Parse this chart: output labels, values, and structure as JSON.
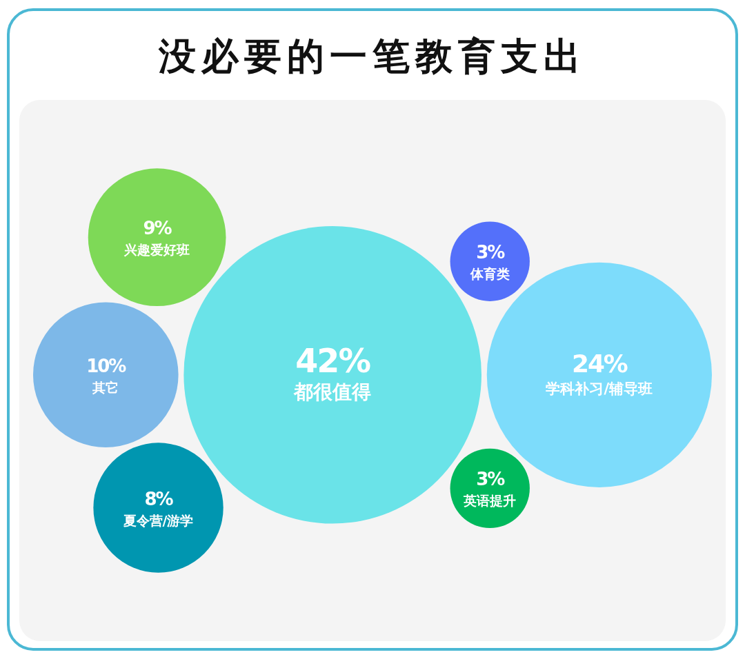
{
  "chart_data": {
    "type": "other",
    "title": "没必要的一笔教育支出",
    "categories": [
      "都很值得",
      "学科补习/辅导班",
      "其它",
      "兴趣爱好班",
      "夏令营/游学",
      "体育类",
      "英语提升"
    ],
    "values": [
      42,
      24,
      10,
      9,
      8,
      3,
      3
    ],
    "value_labels": [
      "42%",
      "24%",
      "10%",
      "9%",
      "8%",
      "3%",
      "3%"
    ],
    "colors": [
      "#6ae3e8",
      "#7ddcfb",
      "#7db8e8",
      "#7ed957",
      "#0096b0",
      "#5470fa",
      "#00b85c"
    ]
  }
}
